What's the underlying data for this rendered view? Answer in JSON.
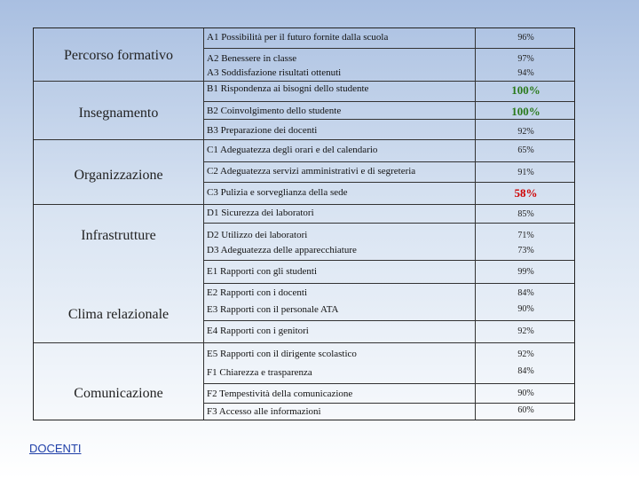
{
  "categories": {
    "percorso": "Percorso formativo",
    "insegnamento": "Insegnamento",
    "organizzazione": "Organizzazione",
    "infrastrutture": "Infrastrutture",
    "clima": "Clima relazionale",
    "comunicazione": "Comunicazione"
  },
  "items": [
    {
      "label": "A1 Possibilità per il futuro fornite dalla scuola",
      "value": "96%"
    },
    {
      "label": "A2 Benessere in classe",
      "value": "97%"
    },
    {
      "label": "A3 Soddisfazione risultati ottenuti",
      "value": "94%"
    },
    {
      "label": "B1 Rispondenza ai bisogni dello studente",
      "value": "100%"
    },
    {
      "label": "B2 Coinvolgimento dello studente",
      "value": "100%"
    },
    {
      "label": "B3 Preparazione dei docenti",
      "value": "92%"
    },
    {
      "label": "C1 Adeguatezza degli orari e del calendario",
      "value": "65%"
    },
    {
      "label": "C2 Adeguatezza servizi amministrativi e di segreteria",
      "value": "91%"
    },
    {
      "label": "C3 Pulizia e sorveglianza della sede",
      "value": "58%"
    },
    {
      "label": "D1 Sicurezza dei laboratori",
      "value": "85%"
    },
    {
      "label": "D2 Utilizzo dei laboratori",
      "value": "71%"
    },
    {
      "label": "D3 Adeguatezza delle apparecchiature",
      "value": "73%"
    },
    {
      "label": "E1 Rapporti con gli studenti",
      "value": "99%"
    },
    {
      "label": "E2 Rapporti con i docenti",
      "value": "84%"
    },
    {
      "label": "E3 Rapporti con il personale ATA",
      "value": "90%"
    },
    {
      "label": "E4 Rapporti con i genitori",
      "value": "92%"
    },
    {
      "label": "E5 Rapporti con il dirigente scolastico",
      "value": "92%"
    },
    {
      "label": "F1 Chiarezza e trasparenza",
      "value": "84%"
    },
    {
      "label": "F2 Tempestività della comunicazione",
      "value": "90%"
    },
    {
      "label": "F3 Accesso alle informazioni",
      "value": "60%"
    }
  ],
  "colors": {
    "highlight_high": "#2a7a1c",
    "highlight_low": "#d00000",
    "link": "#1f3fa8"
  },
  "footer": {
    "link_label": "DOCENTI"
  }
}
